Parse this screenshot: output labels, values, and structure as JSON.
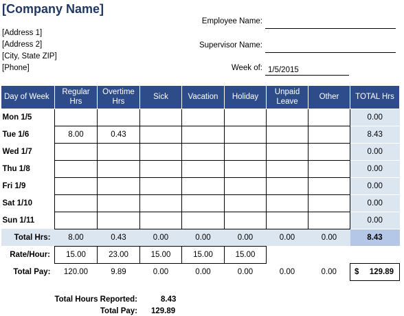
{
  "company": {
    "name": "[Company Name]",
    "address1": "[Address 1]",
    "address2": "[Address 2]",
    "city": "[City, State  ZIP]",
    "phone": "[Phone]"
  },
  "fields": {
    "employee_label": "Employee Name:",
    "employee_value": "",
    "supervisor_label": "Supervisor Name:",
    "supervisor_value": "",
    "week_label": "Week of:",
    "week_value": "1/5/2015"
  },
  "table": {
    "headers": [
      "Day of Week",
      "Regular Hrs",
      "Overtime Hrs",
      "Sick",
      "Vacation",
      "Holiday",
      "Unpaid Leave",
      "Other",
      "TOTAL Hrs"
    ],
    "rows": [
      {
        "day": "Mon 1/5",
        "values": [
          "",
          "",
          "",
          "",
          "",
          "",
          ""
        ],
        "total": "0.00"
      },
      {
        "day": "Tue 1/6",
        "values": [
          "8.00",
          "0.43",
          "",
          "",
          "",
          "",
          ""
        ],
        "total": "8.43"
      },
      {
        "day": "Wed 1/7",
        "values": [
          "",
          "",
          "",
          "",
          "",
          "",
          ""
        ],
        "total": "0.00"
      },
      {
        "day": "Thu 1/8",
        "values": [
          "",
          "",
          "",
          "",
          "",
          "",
          ""
        ],
        "total": "0.00"
      },
      {
        "day": "Fri 1/9",
        "values": [
          "",
          "",
          "",
          "",
          "",
          "",
          ""
        ],
        "total": "0.00"
      },
      {
        "day": "Sat 1/10",
        "values": [
          "",
          "",
          "",
          "",
          "",
          "",
          ""
        ],
        "total": "0.00"
      },
      {
        "day": "Sun 1/11",
        "values": [
          "",
          "",
          "",
          "",
          "",
          "",
          ""
        ],
        "total": "0.00"
      }
    ],
    "total_hrs": {
      "label": "Total Hrs:",
      "values": [
        "8.00",
        "0.43",
        "0.00",
        "0.00",
        "0.00",
        "0.00",
        "0.00"
      ],
      "grand": "8.43"
    },
    "rate": {
      "label": "Rate/Hour:",
      "values": [
        "15.00",
        "23.00",
        "15.00",
        "15.00",
        "15.00"
      ]
    },
    "pay": {
      "label": "Total Pay:",
      "values": [
        "120.00",
        "9.89",
        "0.00",
        "0.00",
        "0.00",
        "0.00",
        "0.00"
      ],
      "currency": "$",
      "grand": "129.89"
    }
  },
  "summary": {
    "hours_label": "Total Hours Reported:",
    "hours_value": "8.43",
    "pay_label": "Total Pay:",
    "pay_value": "129.89"
  },
  "colors": {
    "header_bg": "#2e4c8a",
    "total_bg": "#dce6f1",
    "grand_bg": "#b4c7e7"
  }
}
